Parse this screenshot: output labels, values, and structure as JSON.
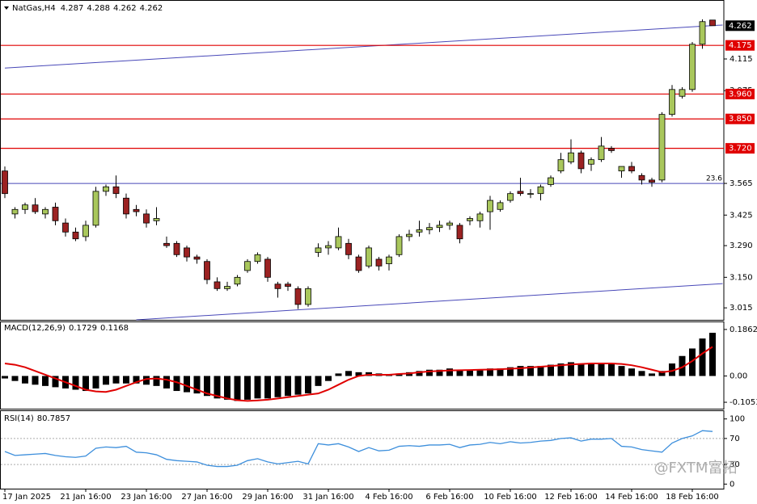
{
  "chart_data": {
    "type": "candlestick",
    "title": "NatGas,H4",
    "categories": [
      "17 Jan 2025",
      null,
      null,
      null,
      null,
      null,
      null,
      null,
      "21 Jan 16:00",
      null,
      null,
      null,
      null,
      null,
      "23 Jan 16:00",
      null,
      null,
      null,
      null,
      null,
      "27 Jan 16:00",
      null,
      null,
      null,
      null,
      null,
      "29 Jan 16:00",
      null,
      null,
      null,
      null,
      null,
      "31 Jan 16:00",
      null,
      null,
      null,
      null,
      null,
      "4 Feb 16:00",
      null,
      null,
      null,
      null,
      null,
      "6 Feb 16:00",
      null,
      null,
      null,
      null,
      null,
      "10 Feb 16:00",
      null,
      null,
      null,
      null,
      null,
      "12 Feb 16:00",
      null,
      null,
      null,
      null,
      null,
      "14 Feb 16:00",
      null,
      null,
      null,
      null,
      null,
      "18 Feb 16:00",
      null,
      null
    ],
    "candles": [
      [
        3.62,
        3.64,
        3.5,
        3.52
      ],
      [
        3.43,
        3.46,
        3.41,
        3.45
      ],
      [
        3.45,
        3.48,
        3.43,
        3.47
      ],
      [
        3.47,
        3.5,
        3.43,
        3.44
      ],
      [
        3.43,
        3.46,
        3.41,
        3.45
      ],
      [
        3.46,
        3.48,
        3.38,
        3.4
      ],
      [
        3.39,
        3.41,
        3.33,
        3.35
      ],
      [
        3.35,
        3.37,
        3.31,
        3.32
      ],
      [
        3.33,
        3.4,
        3.31,
        3.38
      ],
      [
        3.38,
        3.55,
        3.37,
        3.53
      ],
      [
        3.53,
        3.56,
        3.51,
        3.55
      ],
      [
        3.55,
        3.6,
        3.5,
        3.52
      ],
      [
        3.5,
        3.52,
        3.41,
        3.43
      ],
      [
        3.45,
        3.47,
        3.42,
        3.44
      ],
      [
        3.43,
        3.45,
        3.37,
        3.39
      ],
      [
        3.4,
        3.46,
        3.38,
        3.41
      ],
      [
        3.3,
        3.33,
        3.28,
        3.29
      ],
      [
        3.3,
        3.31,
        3.24,
        3.25
      ],
      [
        3.28,
        3.29,
        3.22,
        3.24
      ],
      [
        3.24,
        3.25,
        3.21,
        3.23
      ],
      [
        3.22,
        3.23,
        3.12,
        3.14
      ],
      [
        3.13,
        3.15,
        3.09,
        3.1
      ],
      [
        3.1,
        3.13,
        3.09,
        3.11
      ],
      [
        3.12,
        3.16,
        3.11,
        3.15
      ],
      [
        3.18,
        3.23,
        3.17,
        3.22
      ],
      [
        3.22,
        3.26,
        3.21,
        3.25
      ],
      [
        3.23,
        3.24,
        3.13,
        3.15
      ],
      [
        3.12,
        3.13,
        3.06,
        3.1
      ],
      [
        3.12,
        3.13,
        3.09,
        3.11
      ],
      [
        3.1,
        3.11,
        3.01,
        3.03
      ],
      [
        3.03,
        3.11,
        3.02,
        3.1
      ],
      [
        3.26,
        3.3,
        3.24,
        3.28
      ],
      [
        3.28,
        3.31,
        3.25,
        3.29
      ],
      [
        3.28,
        3.37,
        3.27,
        3.33
      ],
      [
        3.3,
        3.32,
        3.23,
        3.25
      ],
      [
        3.24,
        3.25,
        3.17,
        3.18
      ],
      [
        3.2,
        3.29,
        3.19,
        3.28
      ],
      [
        3.23,
        3.24,
        3.18,
        3.2
      ],
      [
        3.21,
        3.25,
        3.18,
        3.24
      ],
      [
        3.25,
        3.34,
        3.24,
        3.33
      ],
      [
        3.33,
        3.36,
        3.31,
        3.34
      ],
      [
        3.35,
        3.4,
        3.33,
        3.36
      ],
      [
        3.36,
        3.39,
        3.34,
        3.37
      ],
      [
        3.37,
        3.4,
        3.35,
        3.38
      ],
      [
        3.38,
        3.4,
        3.36,
        3.39
      ],
      [
        3.38,
        3.39,
        3.3,
        3.32
      ],
      [
        3.4,
        3.42,
        3.38,
        3.41
      ],
      [
        3.4,
        3.44,
        3.37,
        3.43
      ],
      [
        3.44,
        3.51,
        3.36,
        3.49
      ],
      [
        3.45,
        3.49,
        3.44,
        3.48
      ],
      [
        3.49,
        3.53,
        3.48,
        3.52
      ],
      [
        3.53,
        3.59,
        3.51,
        3.52
      ],
      [
        3.52,
        3.54,
        3.5,
        3.52
      ],
      [
        3.52,
        3.56,
        3.49,
        3.55
      ],
      [
        3.56,
        3.6,
        3.55,
        3.59
      ],
      [
        3.62,
        3.7,
        3.61,
        3.67
      ],
      [
        3.66,
        3.76,
        3.65,
        3.7
      ],
      [
        3.7,
        3.71,
        3.61,
        3.63
      ],
      [
        3.65,
        3.68,
        3.62,
        3.67
      ],
      [
        3.67,
        3.77,
        3.66,
        3.73
      ],
      [
        3.72,
        3.73,
        3.7,
        3.71
      ],
      [
        3.62,
        3.64,
        3.59,
        3.64
      ],
      [
        3.64,
        3.66,
        3.61,
        3.62
      ],
      [
        3.6,
        3.61,
        3.56,
        3.58
      ],
      [
        3.58,
        3.59,
        3.55,
        3.57
      ],
      [
        3.58,
        3.88,
        3.57,
        3.87
      ],
      [
        3.87,
        4.0,
        3.86,
        3.98
      ],
      [
        3.95,
        3.99,
        3.94,
        3.98
      ],
      [
        3.98,
        4.19,
        3.97,
        4.18
      ],
      [
        4.18,
        4.29,
        4.16,
        4.28
      ],
      [
        4.287,
        4.288,
        4.262,
        4.262
      ]
    ],
    "up_color": "#a9c75c",
    "down_color": "#9b2222",
    "ylim": [
      2.962,
      4.372
    ],
    "yticks": [
      4.115,
      3.975,
      3.565,
      3.425,
      {
        "value": 3.29,
        "label": "3.290"
      },
      {
        "value": 3.15,
        "label": "3.150"
      },
      3.015
    ],
    "levels": [
      4.175,
      {
        "value": 3.96,
        "label": "3.960"
      },
      {
        "value": 3.85,
        "label": "3.850"
      },
      {
        "value": 3.72,
        "label": "3.720"
      }
    ],
    "level_color": "#e00000",
    "fib": {
      "value": 3.565,
      "label": "23.6"
    },
    "trendlines": [
      {
        "x": [
          0,
          71
        ],
        "y": [
          4.075,
          4.265
        ]
      },
      {
        "x": [
          13,
          71
        ],
        "y": [
          2.962,
          3.122
        ]
      }
    ],
    "trend_color": "#4848b8",
    "macd": {
      "title": "MACD(12,26,9)",
      "color": "#000000",
      "signal_color": "#e00000",
      "values": [
        -0.01,
        -0.02,
        -0.03,
        -0.035,
        -0.04,
        -0.045,
        -0.05,
        -0.055,
        -0.06,
        -0.05,
        -0.035,
        -0.03,
        -0.03,
        -0.03,
        -0.035,
        -0.04,
        -0.05,
        -0.06,
        -0.065,
        -0.07,
        -0.08,
        -0.09,
        -0.095,
        -0.1,
        -0.095,
        -0.09,
        -0.09,
        -0.085,
        -0.08,
        -0.075,
        -0.07,
        -0.04,
        -0.02,
        0.01,
        0.02,
        0.015,
        0.015,
        0.01,
        0.005,
        0.01,
        0.015,
        0.02,
        0.025,
        0.025,
        0.03,
        0.025,
        0.025,
        0.025,
        0.03,
        0.03,
        0.035,
        0.04,
        0.04,
        0.04,
        0.045,
        0.05,
        0.055,
        0.05,
        0.05,
        0.05,
        0.05,
        0.04,
        0.03,
        0.02,
        0.01,
        0.02,
        0.05,
        0.08,
        0.11,
        0.15,
        0.1729
      ],
      "signal": [
        0.05,
        0.045,
        0.035,
        0.02,
        0.005,
        -0.01,
        -0.025,
        -0.04,
        -0.055,
        -0.062,
        -0.064,
        -0.055,
        -0.04,
        -0.025,
        -0.012,
        -0.01,
        -0.015,
        -0.025,
        -0.04,
        -0.055,
        -0.07,
        -0.08,
        -0.09,
        -0.097,
        -0.1,
        -0.098,
        -0.095,
        -0.09,
        -0.085,
        -0.08,
        -0.075,
        -0.07,
        -0.055,
        -0.035,
        -0.015,
        0.0,
        0.005,
        0.005,
        0.005,
        0.008,
        0.01,
        0.015,
        0.018,
        0.02,
        0.022,
        0.023,
        0.024,
        0.025,
        0.026,
        0.027,
        0.029,
        0.031,
        0.034,
        0.037,
        0.04,
        0.043,
        0.046,
        0.048,
        0.05,
        0.05,
        0.05,
        0.048,
        0.043,
        0.035,
        0.025,
        0.015,
        0.02,
        0.035,
        0.06,
        0.09,
        0.1168
      ],
      "ylim": [
        -0.131,
        0.215
      ],
      "yticks": [
        0.1862,
        {
          "value": 0,
          "label": "0.00"
        },
        -0.1053
      ]
    },
    "rsi": {
      "title": "RSI(14)",
      "color": "#3d8fdc",
      "values": [
        50,
        44,
        45,
        46,
        47,
        44,
        42,
        41,
        43,
        55,
        57,
        56,
        58,
        49,
        48,
        45,
        38,
        36,
        35,
        34,
        29,
        27,
        27,
        29,
        36,
        39,
        34,
        31,
        33,
        35,
        31,
        62,
        60,
        62,
        57,
        50,
        56,
        51,
        52,
        58,
        59,
        58,
        60,
        60,
        61,
        56,
        60,
        61,
        64,
        62,
        65,
        63,
        64,
        66,
        67,
        70,
        71,
        66,
        69,
        69,
        70,
        58,
        57,
        53,
        51,
        49,
        63,
        70,
        74,
        82,
        80.7857
      ],
      "ylim": [
        -7,
        112
      ],
      "yticks": [
        100,
        70,
        30,
        0
      ],
      "dashed": [
        70,
        30
      ]
    },
    "watermark": "@FXTM富拓"
  }
}
